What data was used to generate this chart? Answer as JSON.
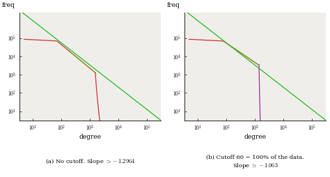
{
  "title_a": "(a) No cutoff. Slope $\\simeq -1.2964$",
  "title_b": "(b) Cutoff 60 − 100% of the data.\nSlope $\\simeq -1.063$",
  "xlabel": "degree",
  "ylabel": "freq",
  "x_ticks": [
    1,
    2,
    3,
    4,
    5
  ],
  "x_ticklabels": [
    "$10^1$",
    "$10^2$",
    "$10^3$",
    "$10^4$",
    "$10^5$"
  ],
  "y_ticks": [
    1,
    2,
    3,
    4,
    5
  ],
  "y_ticklabels": [
    "$10^1$",
    "$10^2$",
    "$10^3$",
    "$10^4$",
    "$10^5$"
  ],
  "green_color": "#22bb22",
  "red_color": "#cc3333",
  "olive_color": "#7a7000",
  "purple_color": "#993399",
  "bg_color": "#f0eeea",
  "slope_a": -1.2964,
  "slope_b": -1.063,
  "xlim": [
    0.55,
    5.5
  ],
  "ylim": [
    0.5,
    6.4
  ]
}
